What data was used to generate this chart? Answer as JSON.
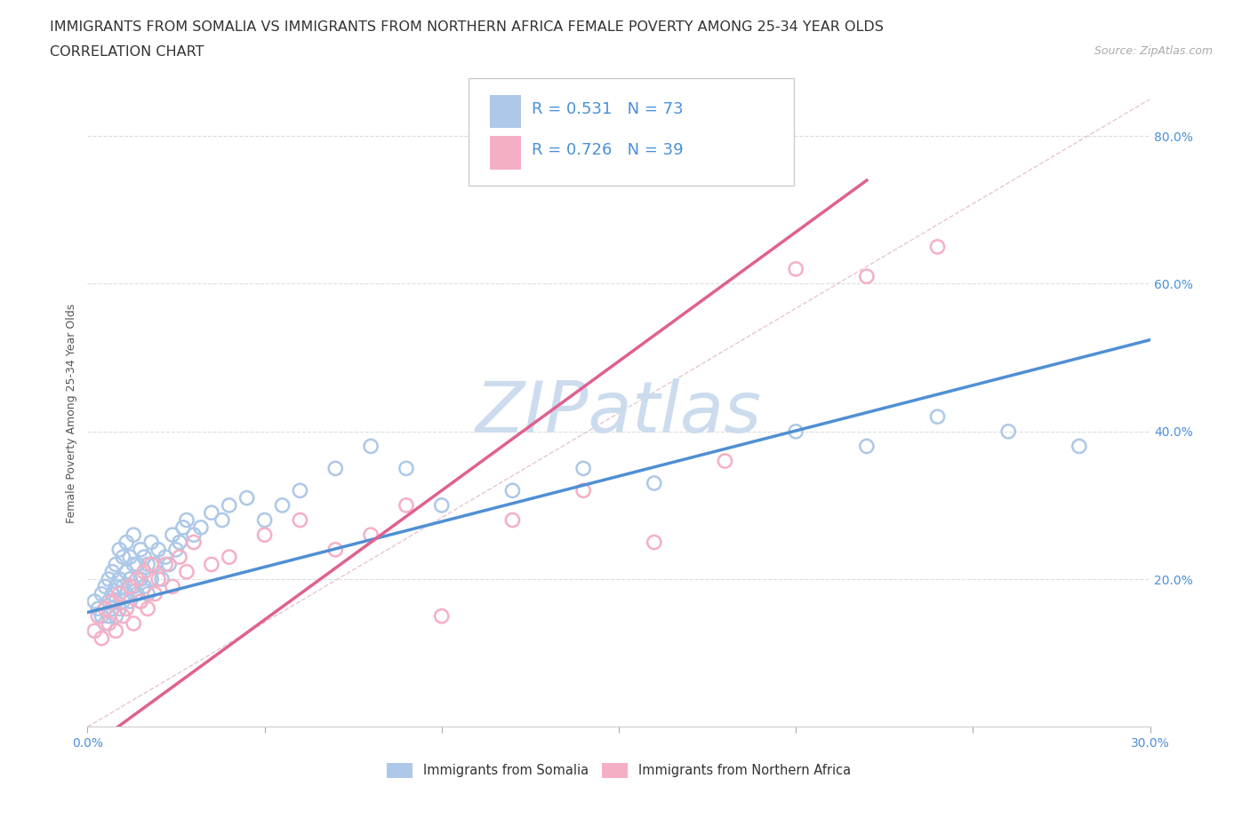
{
  "title_line1": "IMMIGRANTS FROM SOMALIA VS IMMIGRANTS FROM NORTHERN AFRICA FEMALE POVERTY AMONG 25-34 YEAR OLDS",
  "title_line2": "CORRELATION CHART",
  "source": "Source: ZipAtlas.com",
  "ylabel": "Female Poverty Among 25-34 Year Olds",
  "xlim": [
    0.0,
    0.3
  ],
  "ylim": [
    0.0,
    0.85
  ],
  "xticks": [
    0.0,
    0.05,
    0.1,
    0.15,
    0.2,
    0.25,
    0.3
  ],
  "xticklabels": [
    "0.0%",
    "",
    "",
    "",
    "",
    "",
    "30.0%"
  ],
  "yticks": [
    0.2,
    0.4,
    0.6,
    0.8
  ],
  "yticklabels": [
    "20.0%",
    "40.0%",
    "60.0%",
    "80.0%"
  ],
  "R_somalia": 0.531,
  "N_somalia": 73,
  "R_north_africa": 0.726,
  "N_north_africa": 39,
  "color_somalia": "#adc8e8",
  "color_north_africa": "#f5afc5",
  "color_regression_somalia": "#4f8fd4",
  "color_regression_north_africa": "#e06090",
  "color_diagonal": "#e0b8c8",
  "watermark_color": "#ccdcee",
  "title_fontsize": 11.5,
  "subtitle_fontsize": 11.5,
  "axis_label_fontsize": 9,
  "tick_fontsize": 10,
  "legend_fontsize": 13,
  "source_fontsize": 9,
  "somalia_x": [
    0.002,
    0.003,
    0.004,
    0.004,
    0.005,
    0.005,
    0.006,
    0.006,
    0.006,
    0.007,
    0.007,
    0.007,
    0.008,
    0.008,
    0.008,
    0.008,
    0.009,
    0.009,
    0.009,
    0.01,
    0.01,
    0.01,
    0.011,
    0.011,
    0.011,
    0.012,
    0.012,
    0.012,
    0.013,
    0.013,
    0.013,
    0.014,
    0.014,
    0.015,
    0.015,
    0.015,
    0.016,
    0.016,
    0.017,
    0.017,
    0.018,
    0.018,
    0.019,
    0.02,
    0.021,
    0.022,
    0.023,
    0.024,
    0.025,
    0.026,
    0.027,
    0.028,
    0.03,
    0.032,
    0.035,
    0.038,
    0.04,
    0.045,
    0.05,
    0.055,
    0.06,
    0.07,
    0.08,
    0.09,
    0.1,
    0.12,
    0.14,
    0.16,
    0.2,
    0.22,
    0.24,
    0.26,
    0.28
  ],
  "somalia_y": [
    0.17,
    0.16,
    0.15,
    0.18,
    0.14,
    0.19,
    0.15,
    0.17,
    0.2,
    0.16,
    0.18,
    0.21,
    0.15,
    0.17,
    0.19,
    0.22,
    0.16,
    0.2,
    0.24,
    0.17,
    0.19,
    0.23,
    0.18,
    0.21,
    0.25,
    0.17,
    0.2,
    0.23,
    0.19,
    0.22,
    0.26,
    0.18,
    0.22,
    0.17,
    0.2,
    0.24,
    0.19,
    0.23,
    0.18,
    0.22,
    0.2,
    0.25,
    0.22,
    0.24,
    0.2,
    0.23,
    0.22,
    0.26,
    0.24,
    0.25,
    0.27,
    0.28,
    0.26,
    0.27,
    0.29,
    0.28,
    0.3,
    0.31,
    0.28,
    0.3,
    0.32,
    0.35,
    0.38,
    0.35,
    0.3,
    0.32,
    0.35,
    0.33,
    0.4,
    0.38,
    0.42,
    0.4,
    0.38
  ],
  "north_africa_x": [
    0.002,
    0.003,
    0.004,
    0.005,
    0.006,
    0.007,
    0.008,
    0.009,
    0.01,
    0.011,
    0.012,
    0.013,
    0.014,
    0.015,
    0.016,
    0.017,
    0.018,
    0.019,
    0.02,
    0.022,
    0.024,
    0.026,
    0.028,
    0.03,
    0.035,
    0.04,
    0.05,
    0.06,
    0.07,
    0.08,
    0.09,
    0.1,
    0.12,
    0.14,
    0.16,
    0.18,
    0.2,
    0.22,
    0.24
  ],
  "north_africa_y": [
    0.13,
    0.15,
    0.12,
    0.16,
    0.14,
    0.17,
    0.13,
    0.18,
    0.15,
    0.16,
    0.19,
    0.14,
    0.2,
    0.17,
    0.21,
    0.16,
    0.22,
    0.18,
    0.2,
    0.22,
    0.19,
    0.23,
    0.21,
    0.25,
    0.22,
    0.23,
    0.26,
    0.28,
    0.24,
    0.26,
    0.3,
    0.15,
    0.28,
    0.32,
    0.25,
    0.36,
    0.62,
    0.61,
    0.65
  ]
}
